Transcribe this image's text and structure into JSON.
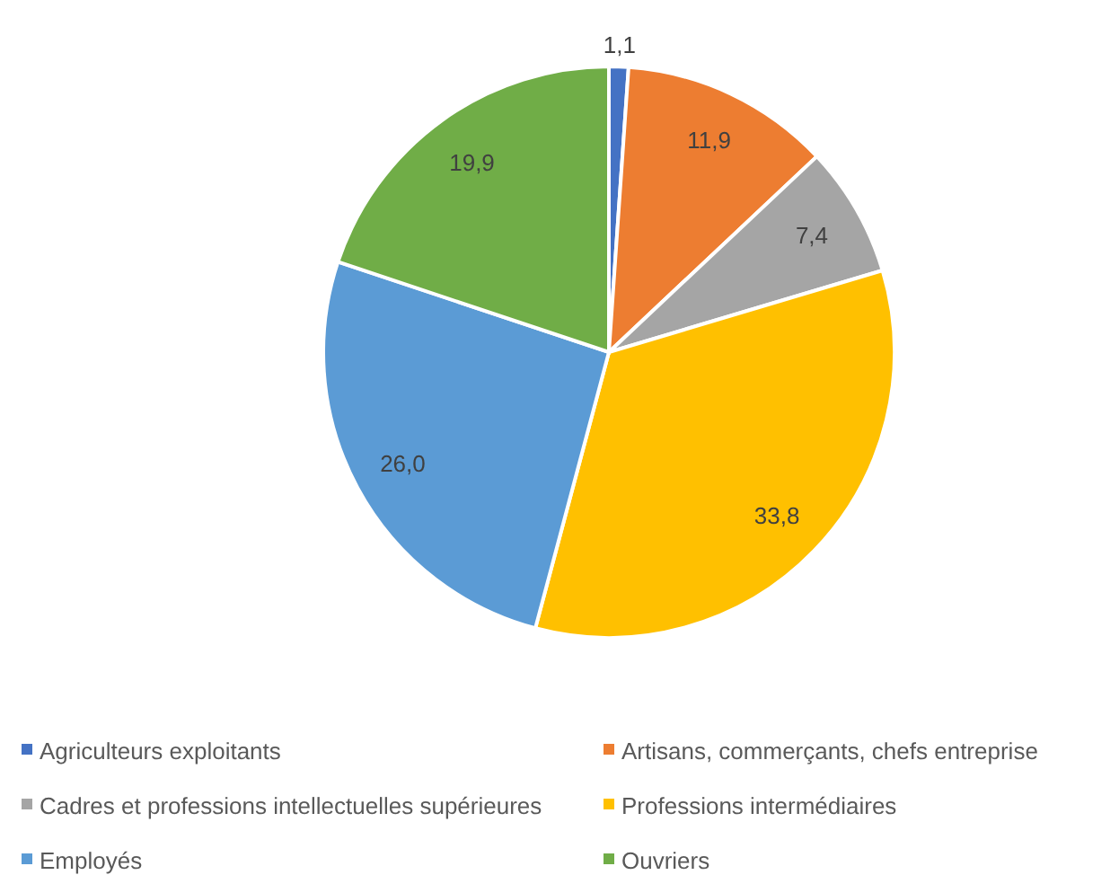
{
  "chart_data": {
    "type": "pie",
    "categories": [
      "Agriculteurs exploitants",
      "Artisans, commerçants, chefs entreprise",
      "Cadres et professions intellectuelles supérieures",
      "Professions intermédiaires",
      "Employés",
      "Ouvriers"
    ],
    "values": [
      1.1,
      11.9,
      7.4,
      33.8,
      26.0,
      19.9
    ],
    "value_labels": [
      "1,1",
      "11,9",
      "7,4",
      "33,8",
      "26,0",
      "19,9"
    ],
    "colors": [
      "#4472c4",
      "#ed7d31",
      "#a5a5a5",
      "#ffc000",
      "#5b9bd5",
      "#70ad47"
    ],
    "legend": "bottom"
  }
}
